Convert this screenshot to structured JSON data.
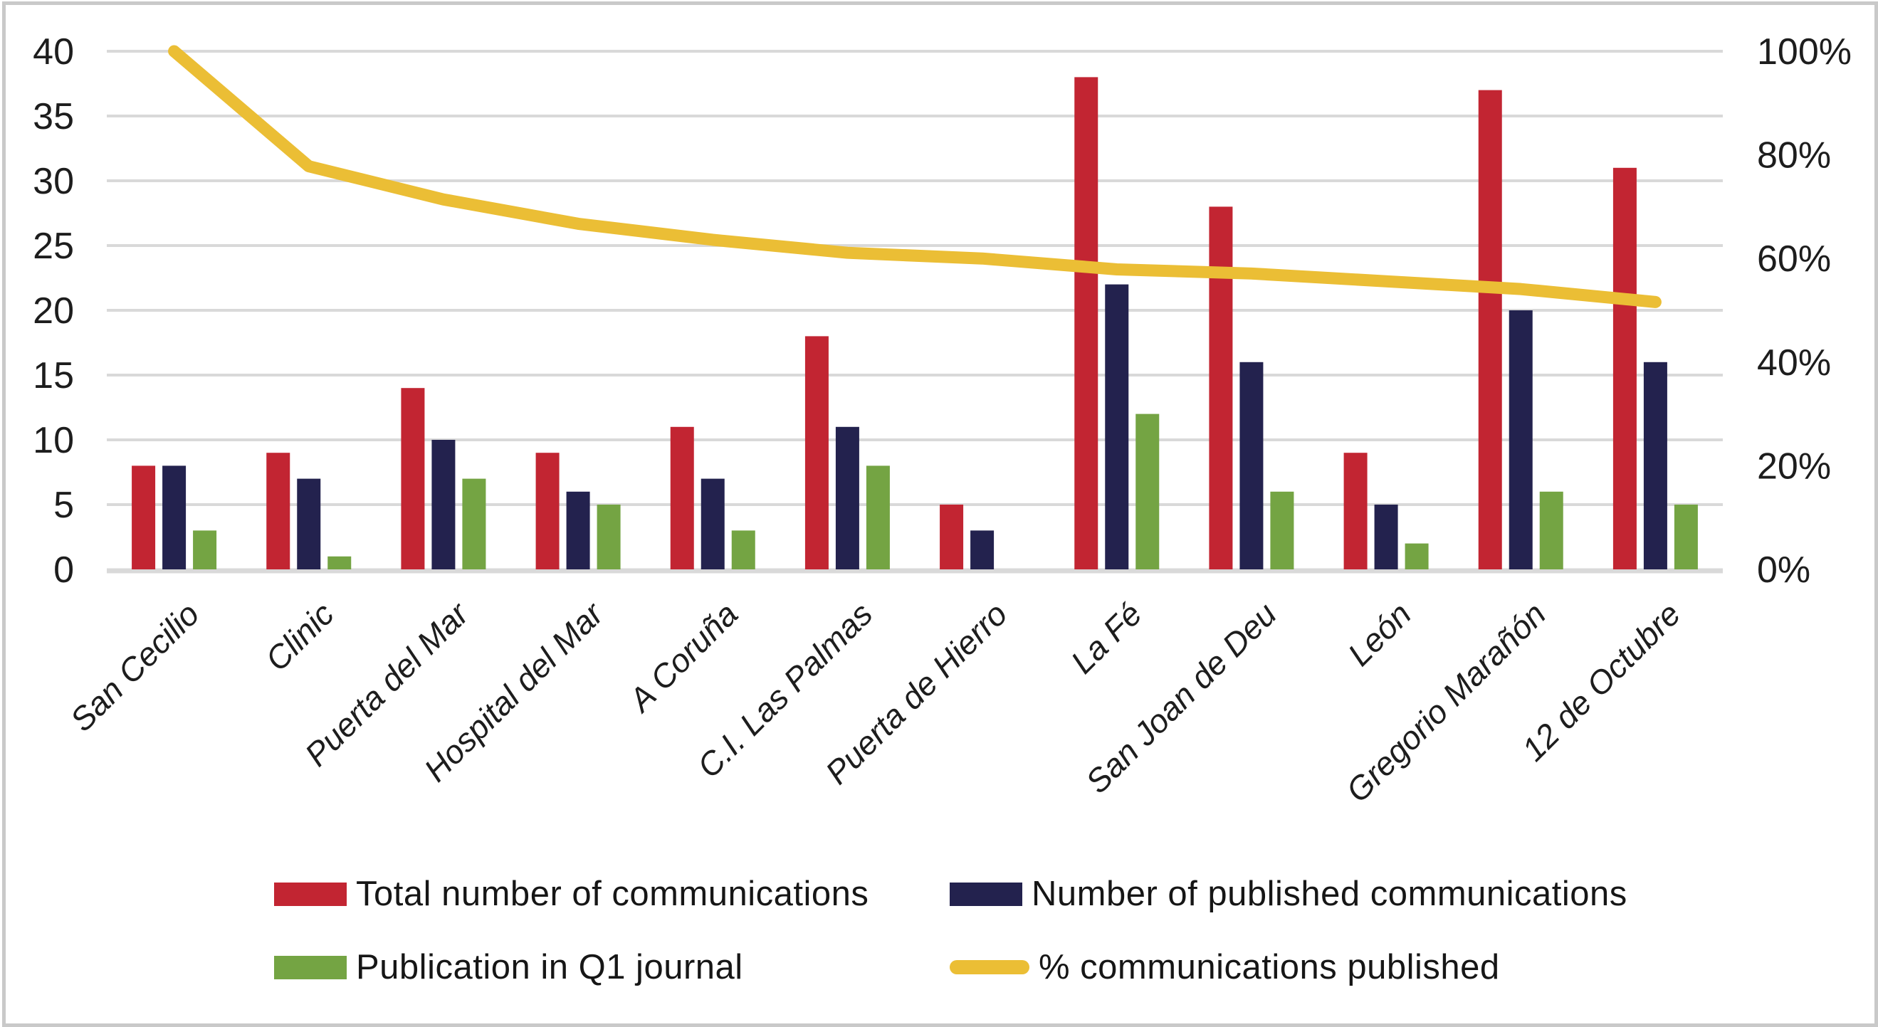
{
  "chart_data": {
    "type": "bar",
    "subtype": "grouped-bars-with-line-overlay",
    "title": "",
    "categories": [
      "San Cecilio",
      "Clinic",
      "Puerta del Mar",
      "Hospital del Mar",
      "A Coruña",
      "C.I. Las Palmas",
      "Puerta de Hierro",
      "La Fé",
      "San Joan de Deu",
      "León",
      "Gregorio Marañón",
      "12 de Octubre"
    ],
    "series": [
      {
        "name": "Total number of communications",
        "type": "bar",
        "axis": "left",
        "color": "#C22532",
        "values": [
          8,
          9,
          14,
          9,
          11,
          18,
          5,
          38,
          28,
          9,
          37,
          31
        ]
      },
      {
        "name": "Number of published communications",
        "type": "bar",
        "axis": "left",
        "color": "#23224E",
        "values": [
          8,
          7,
          10,
          6,
          7,
          11,
          3,
          22,
          16,
          5,
          20,
          16
        ]
      },
      {
        "name": "Publication in Q1 journal",
        "type": "bar",
        "axis": "left",
        "color": "#74A443",
        "values": [
          3,
          1,
          7,
          5,
          3,
          8,
          0,
          12,
          6,
          2,
          6,
          5
        ]
      },
      {
        "name": "% communications published",
        "type": "line",
        "axis": "right",
        "color": "#EBBE35",
        "values": [
          100,
          77.8,
          71.4,
          66.7,
          63.6,
          61.1,
          60.0,
          57.9,
          57.1,
          55.6,
          54.1,
          51.6
        ]
      }
    ],
    "left_axis": {
      "min": 0,
      "max": 40,
      "step": 5,
      "tick_labels": [
        "0",
        "5",
        "10",
        "15",
        "20",
        "25",
        "30",
        "35",
        "40"
      ]
    },
    "right_axis": {
      "min": 0,
      "max": 100,
      "step": 20,
      "tick_labels": [
        "0%",
        "20%",
        "40%",
        "60%",
        "80%",
        "100%"
      ]
    },
    "grid": true,
    "gridline_color": "#D9D9D9",
    "axis_text_color": "#1D1D1D",
    "x_labels_italic": true,
    "legend_position": "bottom, two columns"
  },
  "legend": {
    "items": [
      {
        "label": "Total number of communications",
        "swatch": "bar",
        "series_index": 0
      },
      {
        "label": "Number of published communications",
        "swatch": "bar",
        "series_index": 1
      },
      {
        "label": "Publication in Q1 journal",
        "swatch": "bar",
        "series_index": 2
      },
      {
        "label": "% communications published",
        "swatch": "line",
        "series_index": 3
      }
    ]
  },
  "frame_color": "#C9C9C9"
}
